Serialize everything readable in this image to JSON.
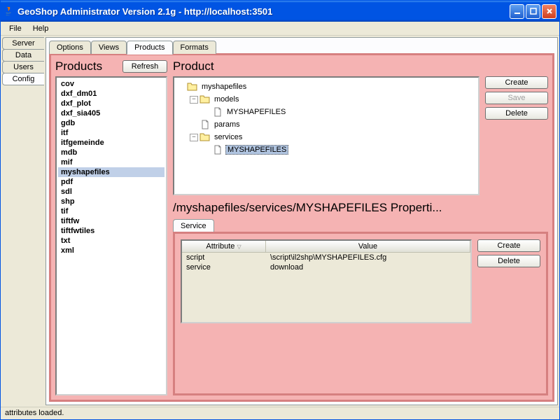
{
  "window": {
    "title": "GeoShop Administrator Version 2.1g - http://localhost:3501"
  },
  "menubar": {
    "items": [
      "File",
      "Help"
    ]
  },
  "leftTabs": {
    "items": [
      "Server",
      "Data",
      "Users",
      "Config"
    ],
    "active": 3
  },
  "topTabs": {
    "items": [
      "Options",
      "Views",
      "Products",
      "Formats"
    ],
    "active": 2
  },
  "productsPanel": {
    "title": "Products",
    "refreshLabel": "Refresh",
    "items": [
      "cov",
      "dxf_dm01",
      "dxf_plot",
      "dxf_sia405",
      "gdb",
      "itf",
      "itfgemeinde",
      "mdb",
      "mif",
      "myshapefiles",
      "pdf",
      "sdl",
      "shp",
      "tif",
      "tiftfw",
      "tiftfwtiles",
      "txt",
      "xml"
    ],
    "selectedIndex": 9
  },
  "productPanel": {
    "title": "Product",
    "buttons": {
      "create": "Create",
      "save": "Save",
      "delete": "Delete"
    },
    "tree": {
      "root": "myshapefiles",
      "nodes": [
        {
          "label": "models",
          "type": "folder",
          "expanded": true,
          "children": [
            {
              "label": "MYSHAPEFILES",
              "type": "file"
            }
          ]
        },
        {
          "label": "params",
          "type": "file"
        },
        {
          "label": "services",
          "type": "folder",
          "expanded": true,
          "children": [
            {
              "label": "MYSHAPEFILES",
              "type": "file",
              "selected": true
            }
          ]
        }
      ]
    }
  },
  "properties": {
    "title": "/myshapefiles/services/MYSHAPEFILES Properti...",
    "tabLabel": "Service",
    "columns": [
      "Attribute",
      "Value"
    ],
    "rows": [
      [
        "script",
        "\\script\\il2shp\\MYSHAPEFILES.cfg"
      ],
      [
        "service",
        "download"
      ]
    ],
    "buttons": {
      "create": "Create",
      "delete": "Delete"
    }
  },
  "statusbar": {
    "text": "attributes loaded."
  },
  "colors": {
    "pink": "#f5b3b3",
    "pinkBorder": "#d68080",
    "titlebar": "#0054e3",
    "panelBg": "#ece9d8"
  }
}
